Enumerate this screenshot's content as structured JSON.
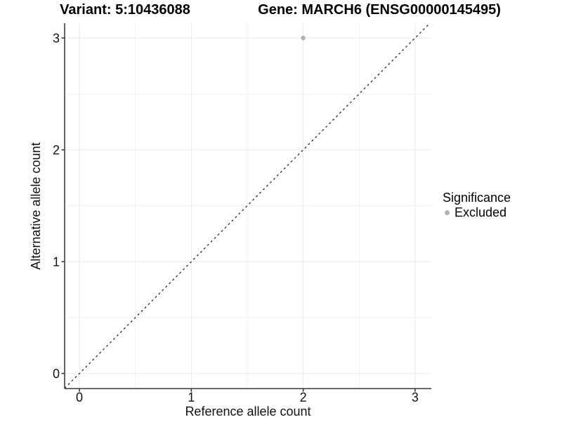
{
  "titles": {
    "variant": "Variant: 5:10436088",
    "gene": "Gene: MARCH6 (ENSG00000145495)"
  },
  "axes": {
    "x_label": "Reference allele count",
    "y_label": "Alternative allele count"
  },
  "legend": {
    "title": "Significance",
    "items": [
      {
        "label": "Excluded",
        "color": "#b0b0b0",
        "marker": "circle-icon"
      }
    ]
  },
  "chart_data": {
    "type": "scatter",
    "xlabel": "Reference allele count",
    "ylabel": "Alternative allele count",
    "x_ticks": [
      0,
      1,
      2,
      3
    ],
    "y_ticks": [
      0,
      1,
      2,
      3
    ],
    "x_minor_ticks": [
      0.5,
      1.5,
      2.5
    ],
    "y_minor_ticks": [
      0.5,
      1.5,
      2.5
    ],
    "xlim": [
      -0.132,
      3.145
    ],
    "ylim": [
      -0.135,
      3.132
    ],
    "grid": "major+minor",
    "legend_position": "right",
    "series": [
      {
        "name": "Excluded",
        "color": "#b0b0b0",
        "points": [
          {
            "x": 2,
            "y": 3
          }
        ]
      }
    ],
    "reference_line": {
      "type": "identity",
      "slope": 1,
      "intercept": 0,
      "style": "dashed",
      "color": "#1a1a1a"
    }
  },
  "colors": {
    "background": "#ffffff",
    "grid_major": "#e8e8e8",
    "grid_minor": "#f1f1f1",
    "axis_line": "#333333",
    "tick_text": "#111111",
    "point": "#b0b0b0"
  }
}
